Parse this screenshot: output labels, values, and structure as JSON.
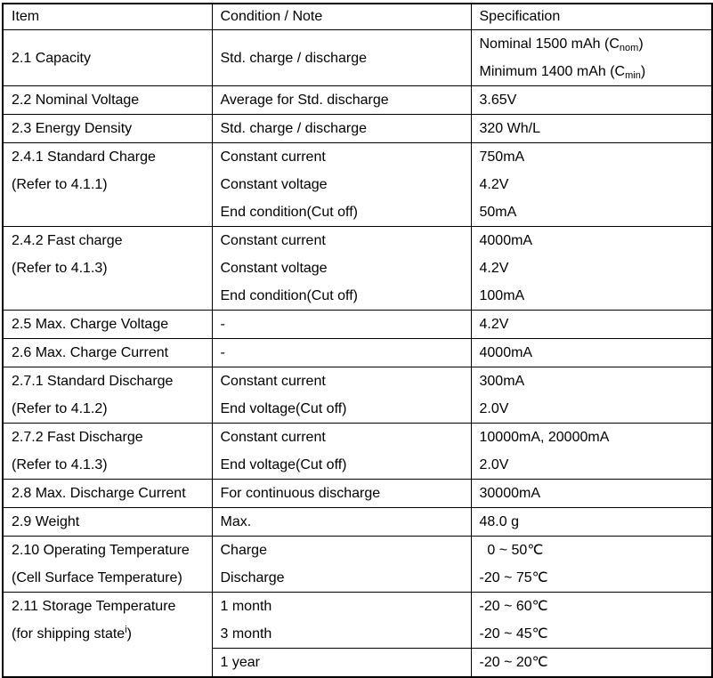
{
  "colors": {
    "background": "#ffffff",
    "border": "#000000",
    "text": "#000000"
  },
  "table": {
    "headers": [
      "Item",
      "Condition / Note",
      "Specification"
    ],
    "rows": [
      {
        "item": [
          "2.1 Capacity"
        ],
        "condition": [
          "Std. charge / discharge"
        ],
        "spec": [
          {
            "pre": "Nominal 1500 mAh (C",
            "sub": "nom",
            "post": ")"
          },
          {
            "pre": "Minimum 1400 mAh (C",
            "sub": "min",
            "post": ")"
          }
        ],
        "valign": "middle"
      },
      {
        "item": [
          "2.2 Nominal Voltage"
        ],
        "condition": [
          "Average for Std. discharge"
        ],
        "spec": [
          "3.65V"
        ]
      },
      {
        "item": [
          "2.3 Energy Density"
        ],
        "condition": [
          "Std. charge / discharge"
        ],
        "spec": [
          "320 Wh/L"
        ]
      },
      {
        "item": [
          "2.4.1 Standard Charge",
          "(Refer to 4.1.1)"
        ],
        "condition": [
          "Constant current",
          "Constant voltage",
          "End condition(Cut off)"
        ],
        "spec": [
          "750mA",
          "4.2V",
          "50mA"
        ]
      },
      {
        "item": [
          "2.4.2 Fast charge",
          "(Refer to 4.1.3)"
        ],
        "condition": [
          "Constant current",
          "Constant voltage",
          "End condition(Cut off)"
        ],
        "spec": [
          "4000mA",
          "4.2V",
          "100mA"
        ]
      },
      {
        "item": [
          "2.5 Max. Charge Voltage"
        ],
        "condition": [
          "-"
        ],
        "spec": [
          "4.2V"
        ]
      },
      {
        "item": [
          "2.6 Max. Charge Current"
        ],
        "condition": [
          "-"
        ],
        "spec": [
          "4000mA"
        ]
      },
      {
        "item": [
          "2.7.1 Standard Discharge",
          "(Refer to 4.1.2)"
        ],
        "condition": [
          "Constant current",
          "End voltage(Cut off)"
        ],
        "spec": [
          "300mA",
          "2.0V"
        ]
      },
      {
        "item": [
          "2.7.2 Fast Discharge",
          "(Refer to 4.1.3)"
        ],
        "condition": [
          "Constant current",
          "End voltage(Cut off)"
        ],
        "spec": [
          "10000mA, 20000mA",
          "2.0V"
        ]
      },
      {
        "item": [
          "2.8 Max. Discharge Current"
        ],
        "condition": [
          "For continuous discharge"
        ],
        "spec": [
          "30000mA"
        ]
      },
      {
        "item": [
          "2.9 Weight"
        ],
        "condition": [
          "Max."
        ],
        "spec": [
          "48.0 g"
        ]
      },
      {
        "item": [
          "2.10 Operating Temperature",
          "(Cell Surface Temperature)"
        ],
        "condition": [
          "Charge",
          "Discharge"
        ],
        "spec": [
          "  0 ~ 50℃",
          "-20 ~ 75℃"
        ]
      },
      {
        "item": [
          "2.11 Storage Temperature",
          {
            "pre": "(for shipping state",
            "sup": "i",
            "post": ")"
          }
        ],
        "item_rowspan": 2,
        "condition": [
          "1 month",
          "3 month"
        ],
        "spec": [
          "-20 ~ 60℃",
          "-20 ~ 45℃"
        ]
      },
      {
        "omit_item": true,
        "condition": [
          "1 year"
        ],
        "spec": [
          "-20 ~ 20℃"
        ]
      }
    ]
  }
}
